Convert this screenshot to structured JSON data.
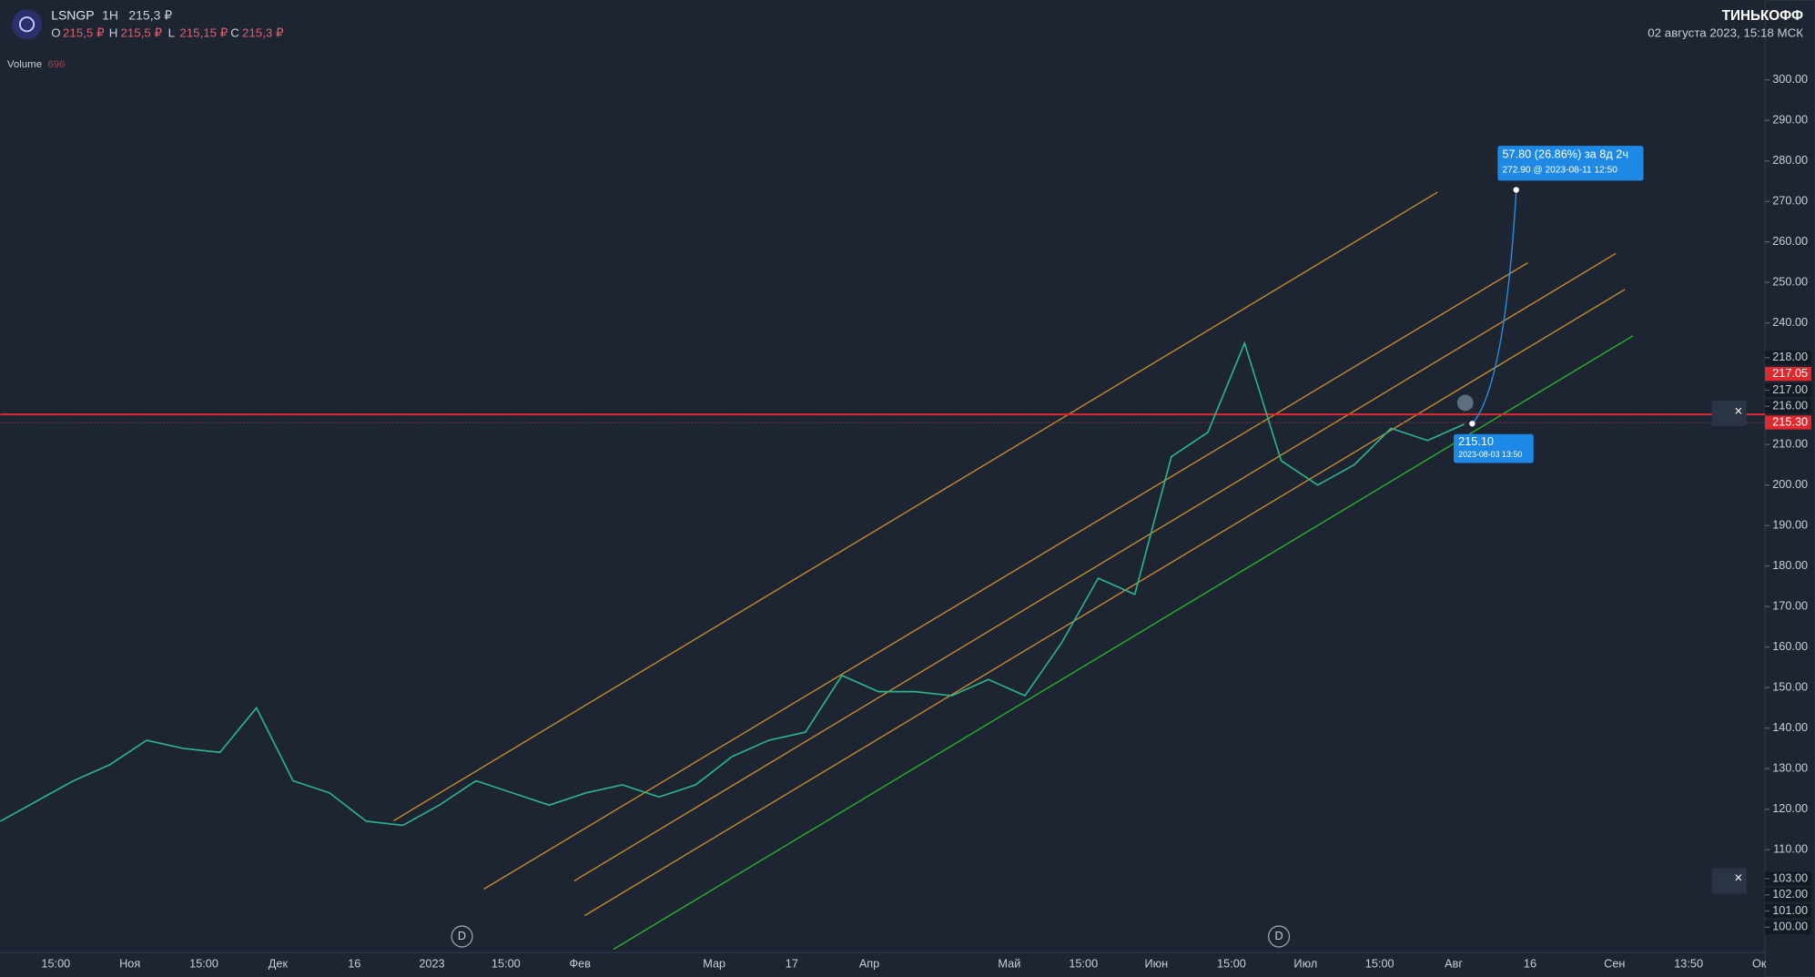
{
  "header": {
    "ticker": "LSNGP",
    "interval": "1H",
    "price": "215,3 ₽",
    "ohlc": [
      {
        "key": "O",
        "value": "215,5 ₽"
      },
      {
        "key": "H",
        "value": "215,5 ₽"
      },
      {
        "key": "L",
        "value": "215,15 ₽"
      },
      {
        "key": "C",
        "value": "215,3 ₽"
      }
    ],
    "brand": "ТИНЬКОФФ",
    "datetime": "02 августа 2023, 15:18 МСК",
    "volume_label": "Volume",
    "volume_value": "696"
  },
  "price_axis": [
    "300.00",
    "290.00",
    "280.00",
    "270.00",
    "260.00",
    "250.00",
    "240.00",
    "218.00",
    "217.05",
    "217.00",
    "216.00",
    "215.30",
    "210.00",
    "200.00",
    "190.00",
    "180.00",
    "170.00",
    "160.00",
    "150.00",
    "140.00",
    "130.00",
    "120.00",
    "110.00",
    "103.00",
    "102.00",
    "101.00",
    "100.00"
  ],
  "time_axis": [
    "15:00",
    "Ноя",
    "15:00",
    "Дек",
    "16",
    "2023",
    "15:00",
    "Фев",
    "Мар",
    "17",
    "Апр",
    "Май",
    "15:00",
    "Июн",
    "15:00",
    "Июл",
    "15:00",
    "Авг",
    "16",
    "Сен",
    "13:50",
    "Ок"
  ],
  "forecast": {
    "change": "57.80 (26.86%) за 8д 2ч",
    "target": "272.90 @ 2023-08-11  12:50",
    "entry_price": "215.10",
    "entry_time": "2023-08-03 13:50"
  },
  "event_marker": "D",
  "price_line": {
    "values": [
      117,
      122,
      127,
      131,
      137,
      135,
      134,
      145,
      127,
      124,
      117,
      116,
      121,
      127,
      124,
      121,
      124,
      126,
      123,
      126,
      133,
      137,
      139,
      153,
      149,
      149,
      148,
      152,
      148,
      161,
      177,
      173,
      207,
      213,
      235,
      206,
      200,
      205,
      214,
      211,
      215
    ]
  }
}
